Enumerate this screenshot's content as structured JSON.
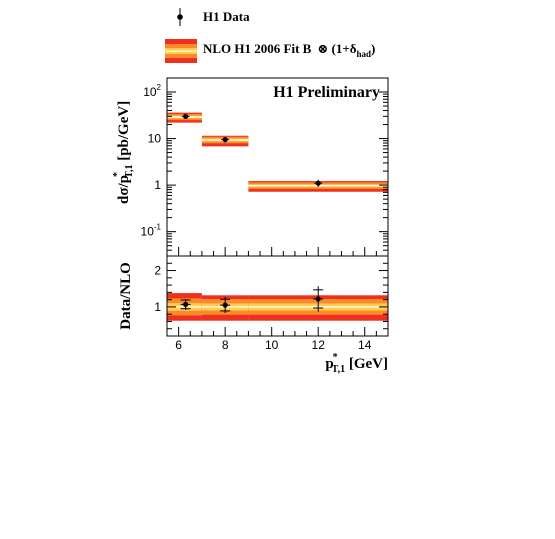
{
  "colors": {
    "band_outer": "#f0301e",
    "band_mid": "#fb8a2c",
    "band_inner": "#ffcb53",
    "band_center": "#fffbe0",
    "marker": "#000000"
  },
  "legend": {
    "data_label": "H1 Data",
    "nlo_label": "NLO H1 2006 Fit B",
    "nlo_factor": "⊗ (1+δ",
    "nlo_sub": "had",
    "nlo_close": ")"
  },
  "top_panel": {
    "tag": "H1 Preliminary",
    "ylabel_main": "dσ/p",
    "ylabel_sup": "*",
    "ylabel_sub": "T,1",
    "ylabel_unit": " [pb/GeV]",
    "yticks": [
      {
        "base": "10",
        "exp": "2",
        "value": 100
      },
      {
        "base": "10",
        "exp": "",
        "value": 10
      },
      {
        "base": "1",
        "exp": "",
        "value": 1
      },
      {
        "base": "10",
        "exp": "-1",
        "value": 0.1
      }
    ]
  },
  "bottom_panel": {
    "ylabel": "Data/NLO",
    "yticks": [
      {
        "label": "2",
        "value": 2
      },
      {
        "label": "1",
        "value": 1
      }
    ]
  },
  "xaxis": {
    "label_main": "p",
    "label_sup": "*",
    "label_sub": "T,1",
    "label_unit": " [GeV]",
    "ticks": [
      {
        "label": "6",
        "value": 6
      },
      {
        "label": "8",
        "value": 8
      },
      {
        "label": "10",
        "value": 10
      },
      {
        "label": "12",
        "value": 12
      },
      {
        "label": "14",
        "value": 14
      }
    ]
  },
  "chart_data": {
    "type": "scatter",
    "x_scale": "linear",
    "xlim": [
      5.5,
      15
    ],
    "top": {
      "y_scale": "log",
      "ylim": [
        0.03,
        200
      ],
      "bins": [
        [
          5.5,
          7
        ],
        [
          7,
          9
        ],
        [
          9,
          15
        ]
      ],
      "data": {
        "name": "H1 Data",
        "x": [
          6.3,
          8.0,
          12.0
        ],
        "y": [
          30,
          9.5,
          1.1
        ],
        "yerr_lo": [
          3.5,
          1.3,
          0.18
        ],
        "yerr_hi": [
          3.5,
          1.3,
          0.2
        ]
      },
      "nlo": {
        "name": "NLO H1 2006 Fit B ⊗ (1+δhad)",
        "central": [
          29,
          9.3,
          0.97
        ],
        "band_lo": [
          22,
          6.8,
          0.72
        ],
        "band_hi": [
          36,
          11.5,
          1.22
        ]
      }
    },
    "ratio": {
      "y_scale": "linear",
      "ylim": [
        0.2,
        2.4
      ],
      "bins": [
        [
          5.5,
          7
        ],
        [
          7,
          9
        ],
        [
          9,
          15
        ]
      ],
      "data_x": [
        6.3,
        8.0,
        12.0
      ],
      "data_y": [
        1.07,
        1.05,
        1.22
      ],
      "data_err": [
        0.12,
        0.16,
        0.25
      ],
      "data_err_tot": [
        0.15,
        0.22,
        0.35
      ],
      "band_lo": [
        0.62,
        0.62,
        0.62
      ],
      "band_hi": [
        1.38,
        1.32,
        1.32
      ]
    }
  }
}
